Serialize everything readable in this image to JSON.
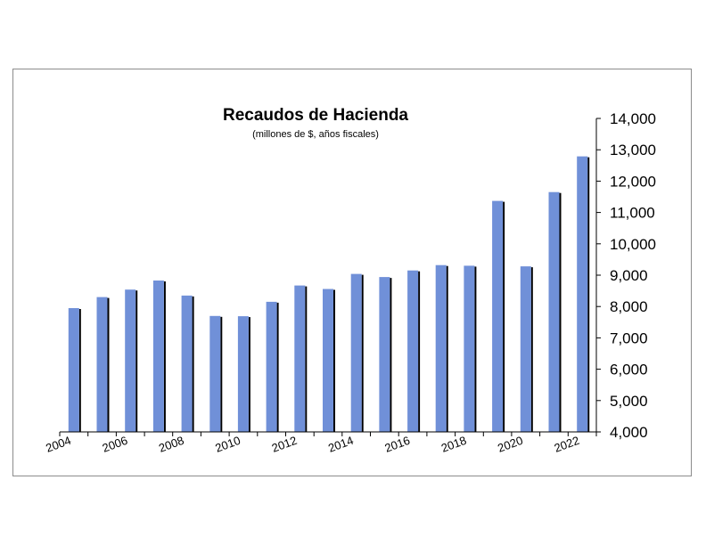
{
  "chart_data": {
    "type": "bar",
    "title": "Recaudos de Hacienda",
    "subtitle": "(millones de $, años fiscales)",
    "categories": [
      "2004",
      "2005",
      "2006",
      "2007",
      "2008",
      "2009",
      "2010",
      "2011",
      "2012",
      "2013",
      "2014",
      "2015",
      "2016",
      "2017",
      "2018",
      "2019",
      "2020",
      "2021",
      "2022"
    ],
    "x_tick_labels": [
      "2004",
      "2006",
      "2008",
      "2010",
      "2012",
      "2014",
      "2016",
      "2018",
      "2020",
      "2022"
    ],
    "values": [
      7950,
      8300,
      8540,
      8830,
      8350,
      7700,
      7690,
      8150,
      8670,
      8560,
      9040,
      8940,
      9150,
      9320,
      9300,
      11370,
      9280,
      11650,
      12790
    ],
    "ylim": [
      4000,
      14000
    ],
    "y_ticks": [
      "4,000",
      "5,000",
      "6,000",
      "7,000",
      "8,000",
      "9,000",
      "10,000",
      "11,000",
      "12,000",
      "13,000",
      "14,000"
    ],
    "y_axis_side": "right",
    "grid": false,
    "legend": "none",
    "bar_color": "#7090d8",
    "shadow_color": "#000000"
  }
}
